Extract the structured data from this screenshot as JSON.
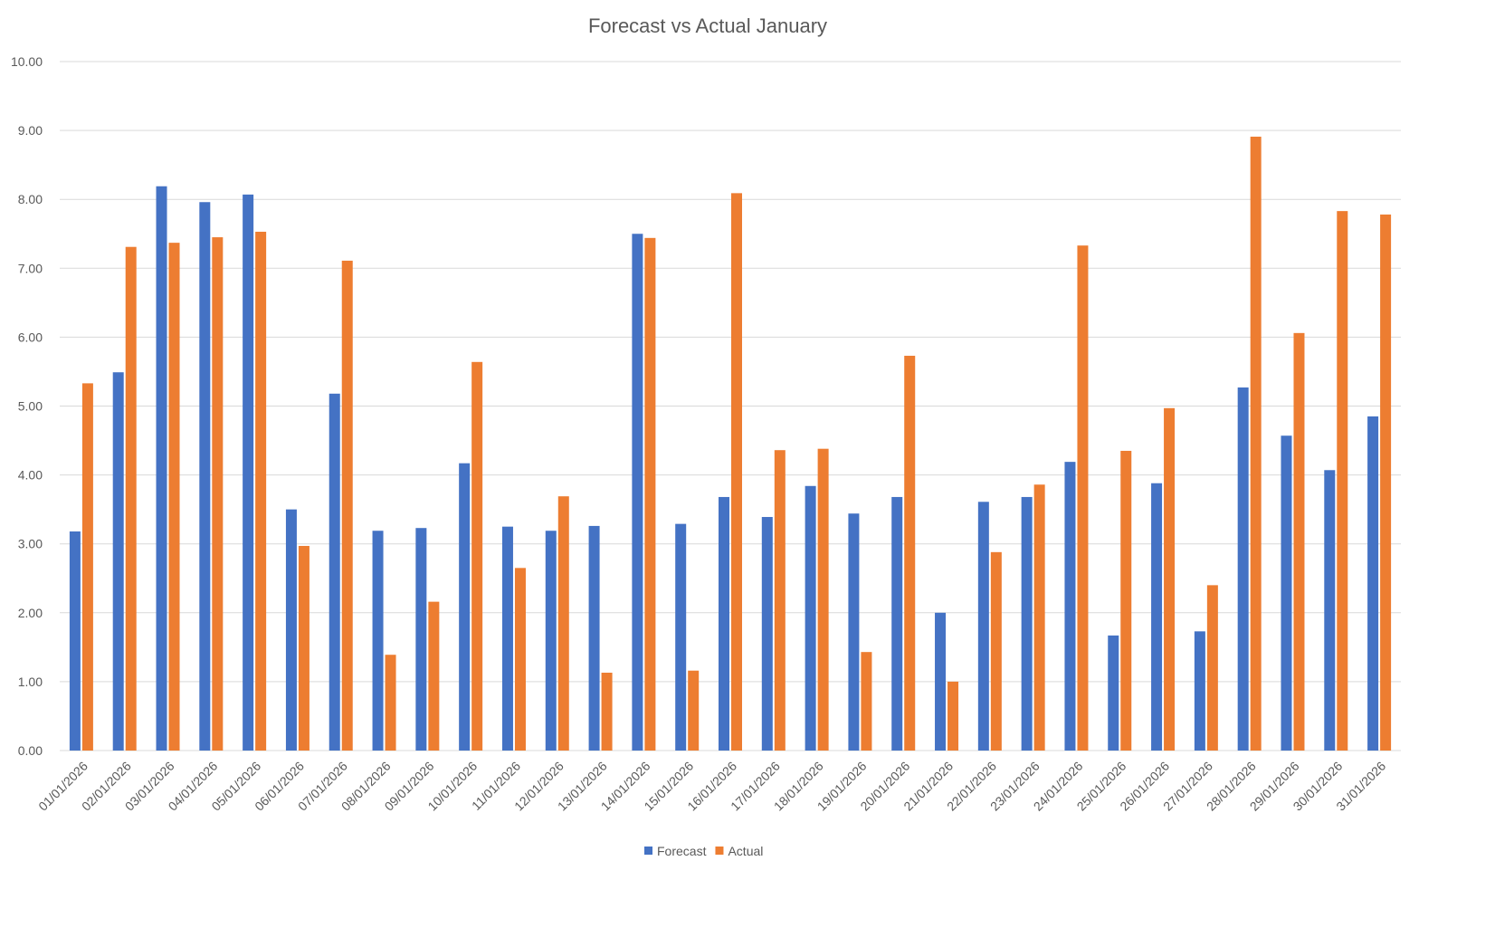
{
  "chart_data": {
    "type": "bar",
    "title": "Forecast vs Actual January",
    "xlabel": "",
    "ylabel": "",
    "ylim": [
      0,
      10
    ],
    "yticks": [
      "0.00",
      "1.00",
      "2.00",
      "3.00",
      "4.00",
      "5.00",
      "6.00",
      "7.00",
      "8.00",
      "9.00",
      "10.00"
    ],
    "grid": true,
    "legend_position": "bottom",
    "categories": [
      "01/01/2026",
      "02/01/2026",
      "03/01/2026",
      "04/01/2026",
      "05/01/2026",
      "06/01/2026",
      "07/01/2026",
      "08/01/2026",
      "09/01/2026",
      "10/01/2026",
      "11/01/2026",
      "12/01/2026",
      "13/01/2026",
      "14/01/2026",
      "15/01/2026",
      "16/01/2026",
      "17/01/2026",
      "18/01/2026",
      "19/01/2026",
      "20/01/2026",
      "21/01/2026",
      "22/01/2026",
      "23/01/2026",
      "24/01/2026",
      "25/01/2026",
      "26/01/2026",
      "27/01/2026",
      "28/01/2026",
      "29/01/2026",
      "30/01/2026",
      "31/01/2026"
    ],
    "series": [
      {
        "name": "Forecast",
        "color": "#4472C4",
        "values": [
          3.18,
          5.49,
          8.19,
          7.96,
          8.07,
          3.5,
          5.18,
          3.19,
          3.23,
          4.17,
          3.25,
          3.19,
          3.26,
          7.5,
          3.29,
          3.68,
          3.39,
          3.84,
          3.44,
          3.68,
          2.0,
          3.61,
          3.68,
          4.19,
          1.67,
          3.88,
          1.73,
          5.27,
          4.57,
          4.07,
          4.85
        ]
      },
      {
        "name": "Actual",
        "color": "#ED7D31",
        "values": [
          5.33,
          7.31,
          7.37,
          7.45,
          7.53,
          2.97,
          7.11,
          1.39,
          2.16,
          5.64,
          2.65,
          3.69,
          1.13,
          7.44,
          1.16,
          8.09,
          4.36,
          4.38,
          1.43,
          5.73,
          1.0,
          2.88,
          3.86,
          7.33,
          4.35,
          4.97,
          2.4,
          8.91,
          6.06,
          7.83,
          7.78
        ]
      }
    ]
  }
}
